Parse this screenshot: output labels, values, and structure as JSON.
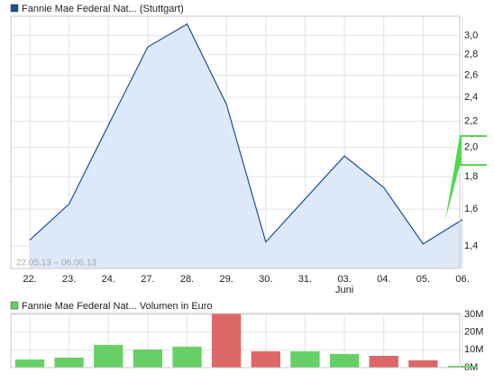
{
  "chart_data": [
    {
      "type": "area",
      "categories": [
        "22.",
        "23.",
        "24.",
        "27.",
        "28.",
        "29.",
        "30.",
        "31.",
        "03.",
        "04.",
        "05.",
        "06."
      ],
      "sublabels": [
        null,
        null,
        null,
        null,
        null,
        null,
        null,
        null,
        "Juni",
        null,
        null,
        null
      ],
      "series": [
        {
          "name": "Fannie Mae Federal Nat... (Stuttgart)",
          "color": "#1f4e9c",
          "fill": "#dde8f9",
          "values": [
            1.43,
            1.63,
            2.17,
            2.88,
            3.13,
            2.34,
            1.42,
            1.66,
            1.94,
            1.73,
            1.41,
            1.54
          ]
        }
      ],
      "ylim": [
        1.29,
        3.22
      ],
      "yticks": [
        {
          "value": 1.4,
          "label": "1,4"
        },
        {
          "value": 1.6,
          "label": "1,6"
        },
        {
          "value": 1.8,
          "label": "1,8"
        },
        {
          "value": 2.0,
          "label": "2,0"
        },
        {
          "value": 2.2,
          "label": "2,2"
        },
        {
          "value": 2.4,
          "label": "2,4"
        },
        {
          "value": 2.6,
          "label": "2,6"
        },
        {
          "value": 2.8,
          "label": "2,8"
        },
        {
          "value": 3.0,
          "label": "3,0"
        }
      ],
      "log_scale": true,
      "grid": true,
      "annotation": "22.05.13 – 06.06.13"
    },
    {
      "type": "bar",
      "categories": [
        "22.",
        "23.",
        "24.",
        "27.",
        "28.",
        "29.",
        "30.",
        "31.",
        "03.",
        "04.",
        "05.",
        "06."
      ],
      "series": [
        {
          "name": "Fannie Mae Federal Nat... Volumen in Euro",
          "color": "#66d066",
          "values": [
            4600000,
            5600000,
            12800000,
            10200000,
            11800000,
            30500000,
            9200000,
            9200000,
            7700000,
            6600000,
            4100000,
            1000000
          ],
          "colors": [
            "#66d066",
            "#66d066",
            "#66d066",
            "#66d066",
            "#66d066",
            "#dd6666",
            "#dd6666",
            "#66d066",
            "#66d066",
            "#dd6666",
            "#dd6666",
            "#66d066"
          ]
        }
      ],
      "ylim": [
        0,
        30500000
      ],
      "yticks": [
        {
          "value": 0,
          "label": "0M"
        },
        {
          "value": 10000000,
          "label": "10M"
        },
        {
          "value": 20000000,
          "label": "20M"
        },
        {
          "value": 30000000,
          "label": "30M"
        }
      ],
      "grid": true
    }
  ]
}
